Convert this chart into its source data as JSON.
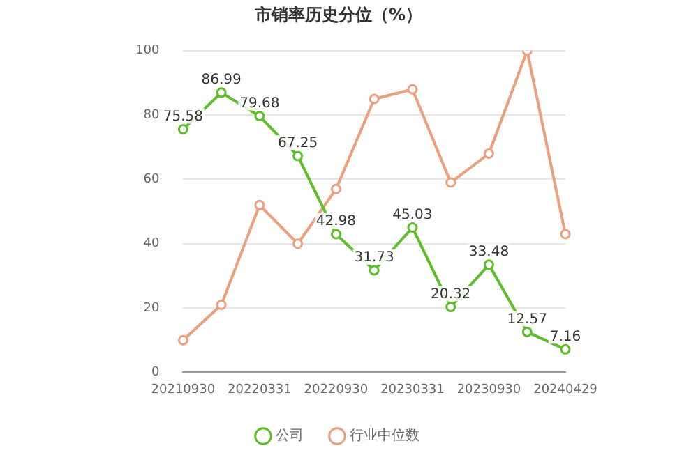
{
  "chart_data": {
    "type": "line",
    "title": "市销率历史分位（%）",
    "categories": [
      "20210930",
      null,
      "20220331",
      null,
      "20220930",
      null,
      "20230331",
      null,
      "20230930",
      null,
      "20240429"
    ],
    "series": [
      {
        "name": "公司",
        "color": "#5cbf2a",
        "values": [
          75.58,
          86.99,
          79.68,
          67.25,
          42.98,
          31.73,
          45.03,
          20.32,
          33.48,
          12.57,
          7.16
        ],
        "value_labels": [
          "75.58",
          "86.99",
          "79.68",
          "67.25",
          "42.98",
          "31.73",
          "45.03",
          "20.32",
          "33.48",
          "12.57",
          "7.16"
        ]
      },
      {
        "name": "行业中位数",
        "color": "#eb9f7c",
        "values": [
          10,
          21,
          52,
          40,
          57,
          85,
          88,
          59,
          68,
          100,
          43
        ]
      }
    ],
    "ylim": [
      0,
      100
    ],
    "yticks": [
      0,
      20,
      40,
      60,
      80,
      100
    ],
    "grid": "y",
    "legend": "bottom",
    "marker": "circle",
    "line_style": "solid"
  }
}
